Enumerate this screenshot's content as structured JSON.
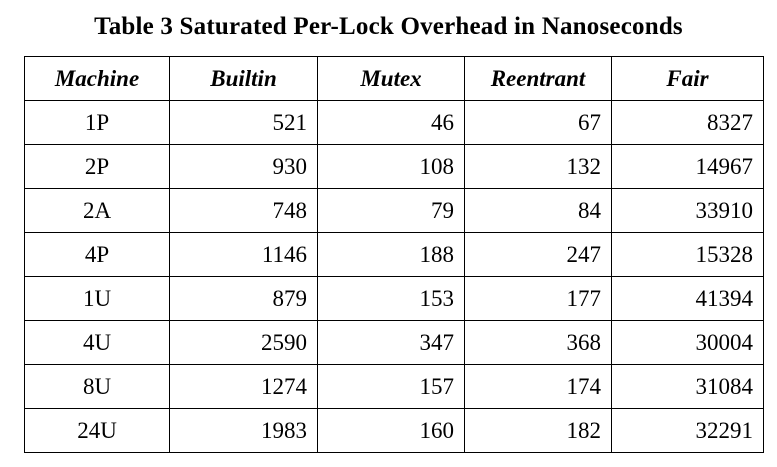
{
  "caption": "Table 3 Saturated Per-Lock Overhead in Nanoseconds",
  "table": {
    "headers": [
      "Machine",
      "Builtin",
      "Mutex",
      "Reentrant",
      "Fair"
    ],
    "rows": [
      [
        "1P",
        "521",
        "46",
        "67",
        "8327"
      ],
      [
        "2P",
        "930",
        "108",
        "132",
        "14967"
      ],
      [
        "2A",
        "748",
        "79",
        "84",
        "33910"
      ],
      [
        "4P",
        "1146",
        "188",
        "247",
        "15328"
      ],
      [
        "1U",
        "879",
        "153",
        "177",
        "41394"
      ],
      [
        "4U",
        "2590",
        "347",
        "368",
        "30004"
      ],
      [
        "8U",
        "1274",
        "157",
        "174",
        "31084"
      ],
      [
        "24U",
        "1983",
        "160",
        "182",
        "32291"
      ]
    ]
  }
}
